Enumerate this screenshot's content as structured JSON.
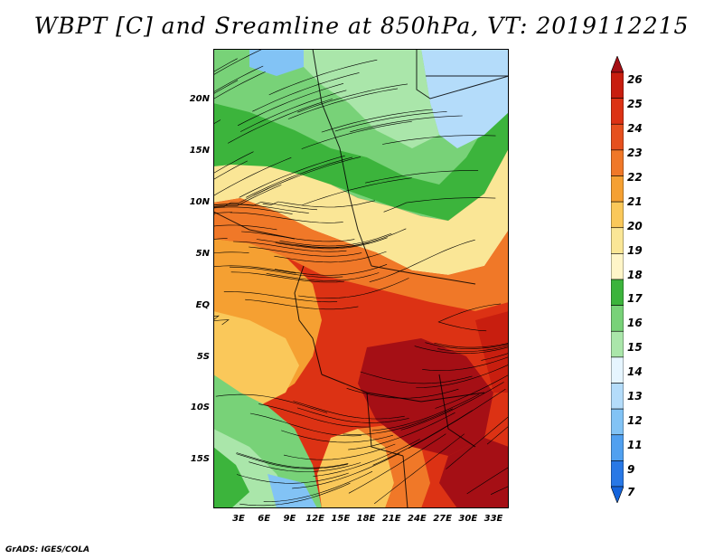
{
  "title": "WBPT [C] and Sreamline at 850hPa, VT: 2019112215",
  "footer": "GrADS: IGES/COLA",
  "map": {
    "lat_labels": [
      "20N",
      "15N",
      "10N",
      "5N",
      "EQ",
      "5S",
      "10S",
      "15S"
    ],
    "lon_labels": [
      "3E",
      "6E",
      "9E",
      "12E",
      "15E",
      "18E",
      "21E",
      "24E",
      "27E",
      "30E",
      "33E"
    ]
  },
  "colorbar": {
    "labels": [
      "26",
      "25",
      "24",
      "23",
      "22",
      "21",
      "20",
      "19",
      "18",
      "17",
      "16",
      "15",
      "14",
      "13",
      "12",
      "11",
      "9",
      "7"
    ],
    "colors": [
      "#a50f15",
      "#c81e0f",
      "#dc3214",
      "#e6501e",
      "#f07828",
      "#f5a032",
      "#fac85a",
      "#fae696",
      "#fff5c8",
      "#3cb43c",
      "#78d278",
      "#aae6aa",
      "#e6f5ff",
      "#b4dcfa",
      "#82c3f5",
      "#50a0f0",
      "#2878e6",
      "#1464dc"
    ]
  }
}
